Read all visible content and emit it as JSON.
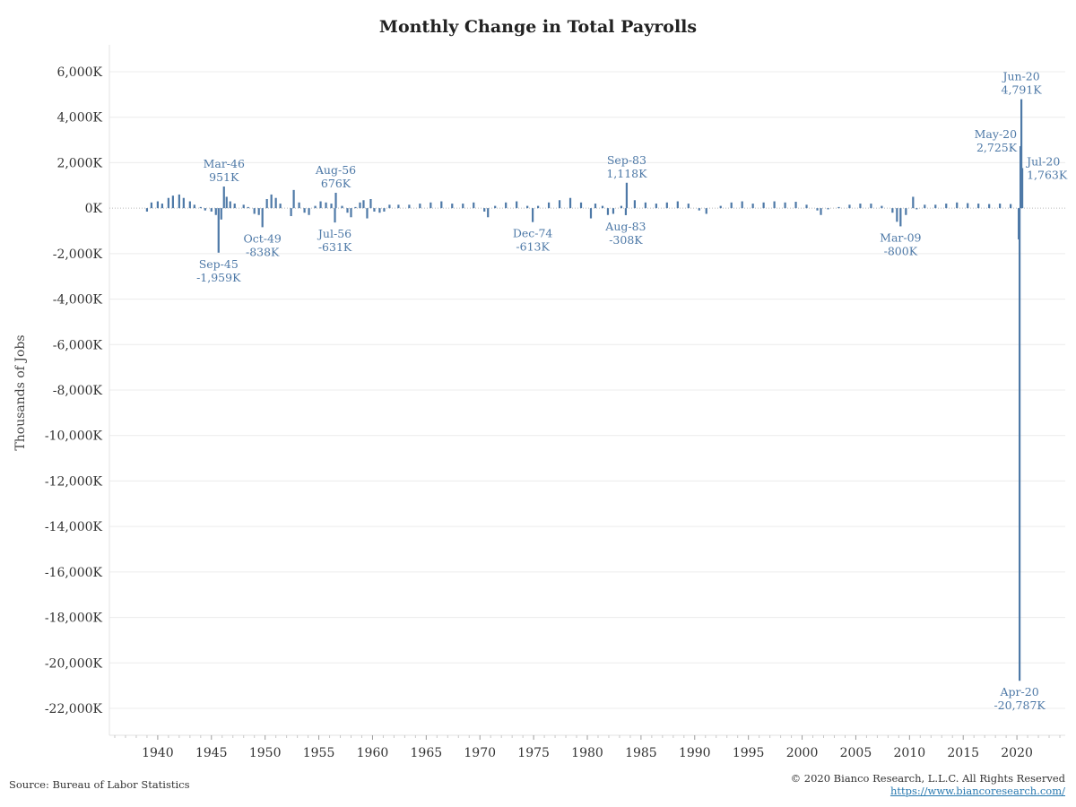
{
  "chart_data": {
    "type": "bar",
    "title": "Monthly Change in Total Payrolls",
    "ylabel": "Thousands of Jobs",
    "xlabel": "",
    "ylim": [
      -23000,
      7000
    ],
    "xlim": [
      1935.5,
      2024.5
    ],
    "y_ticks": [
      6000,
      4000,
      2000,
      0,
      -2000,
      -4000,
      -6000,
      -8000,
      -10000,
      -12000,
      -14000,
      -16000,
      -18000,
      -20000,
      -22000
    ],
    "y_tick_labels": [
      "6,000K",
      "4,000K",
      "2,000K",
      "0K",
      "-2,000K",
      "-4,000K",
      "-6,000K",
      "-8,000K",
      "-10,000K",
      "-12,000K",
      "-14,000K",
      "-16,000K",
      "-18,000K",
      "-20,000K",
      "-22,000K"
    ],
    "x_ticks": [
      1940,
      1945,
      1950,
      1955,
      1960,
      1965,
      1970,
      1975,
      1980,
      1985,
      1990,
      1995,
      2000,
      2005,
      2010,
      2015,
      2020
    ],
    "x_tick_labels": [
      "1940",
      "1945",
      "1950",
      "1955",
      "1960",
      "1965",
      "1970",
      "1975",
      "1980",
      "1985",
      "1990",
      "1995",
      "2000",
      "2005",
      "2010",
      "2015",
      "2020"
    ],
    "grid": "horizontal",
    "bar_color": "#4e79a7",
    "series": [
      {
        "values": [
          {
            "x": "1939-01",
            "y": -150
          },
          {
            "x": "1939-06",
            "y": 250
          },
          {
            "x": "1940-01",
            "y": 300
          },
          {
            "x": "1940-06",
            "y": 200
          },
          {
            "x": "1941-01",
            "y": 450
          },
          {
            "x": "1941-06",
            "y": 550
          },
          {
            "x": "1942-01",
            "y": 600
          },
          {
            "x": "1942-06",
            "y": 450
          },
          {
            "x": "1943-01",
            "y": 300
          },
          {
            "x": "1943-06",
            "y": 150
          },
          {
            "x": "1944-01",
            "y": 50
          },
          {
            "x": "1944-06",
            "y": -100
          },
          {
            "x": "1945-01",
            "y": -150
          },
          {
            "x": "1945-06",
            "y": -300
          },
          {
            "x": "1945-09",
            "y": -1959
          },
          {
            "x": "1945-12",
            "y": -500
          },
          {
            "x": "1946-03",
            "y": 951
          },
          {
            "x": "1946-06",
            "y": 500
          },
          {
            "x": "1946-10",
            "y": 300
          },
          {
            "x": "1947-03",
            "y": 200
          },
          {
            "x": "1948-01",
            "y": 150
          },
          {
            "x": "1948-06",
            "y": 50
          },
          {
            "x": "1949-01",
            "y": -250
          },
          {
            "x": "1949-06",
            "y": -300
          },
          {
            "x": "1949-10",
            "y": -838
          },
          {
            "x": "1950-03",
            "y": 400
          },
          {
            "x": "1950-08",
            "y": 600
          },
          {
            "x": "1951-01",
            "y": 450
          },
          {
            "x": "1951-06",
            "y": 200
          },
          {
            "x": "1952-06",
            "y": -350
          },
          {
            "x": "1952-09",
            "y": 800
          },
          {
            "x": "1953-03",
            "y": 250
          },
          {
            "x": "1953-09",
            "y": -200
          },
          {
            "x": "1954-02",
            "y": -300
          },
          {
            "x": "1954-09",
            "y": 100
          },
          {
            "x": "1955-03",
            "y": 300
          },
          {
            "x": "1955-09",
            "y": 250
          },
          {
            "x": "1956-03",
            "y": 200
          },
          {
            "x": "1956-07",
            "y": -631
          },
          {
            "x": "1956-08",
            "y": 676
          },
          {
            "x": "1957-03",
            "y": 100
          },
          {
            "x": "1957-09",
            "y": -200
          },
          {
            "x": "1958-01",
            "y": -400
          },
          {
            "x": "1958-06",
            "y": 50
          },
          {
            "x": "1958-11",
            "y": 250
          },
          {
            "x": "1959-03",
            "y": 350
          },
          {
            "x": "1959-07",
            "y": -450
          },
          {
            "x": "1959-11",
            "y": 400
          },
          {
            "x": "1960-03",
            "y": -150
          },
          {
            "x": "1960-09",
            "y": -200
          },
          {
            "x": "1961-02",
            "y": -150
          },
          {
            "x": "1961-08",
            "y": 150
          },
          {
            "x": "1962-06",
            "y": 150
          },
          {
            "x": "1963-06",
            "y": 150
          },
          {
            "x": "1964-06",
            "y": 200
          },
          {
            "x": "1965-06",
            "y": 250
          },
          {
            "x": "1966-06",
            "y": 300
          },
          {
            "x": "1967-06",
            "y": 200
          },
          {
            "x": "1968-06",
            "y": 200
          },
          {
            "x": "1969-06",
            "y": 250
          },
          {
            "x": "1970-06",
            "y": -150
          },
          {
            "x": "1970-10",
            "y": -400
          },
          {
            "x": "1971-06",
            "y": 100
          },
          {
            "x": "1972-06",
            "y": 250
          },
          {
            "x": "1973-06",
            "y": 300
          },
          {
            "x": "1974-06",
            "y": 100
          },
          {
            "x": "1974-12",
            "y": -613
          },
          {
            "x": "1975-06",
            "y": 100
          },
          {
            "x": "1976-06",
            "y": 250
          },
          {
            "x": "1977-06",
            "y": 350
          },
          {
            "x": "1978-06",
            "y": 450
          },
          {
            "x": "1979-06",
            "y": 250
          },
          {
            "x": "1980-05",
            "y": -450
          },
          {
            "x": "1980-10",
            "y": 200
          },
          {
            "x": "1981-06",
            "y": 100
          },
          {
            "x": "1981-12",
            "y": -300
          },
          {
            "x": "1982-06",
            "y": -250
          },
          {
            "x": "1983-03",
            "y": 100
          },
          {
            "x": "1983-08",
            "y": -308
          },
          {
            "x": "1983-09",
            "y": 1118
          },
          {
            "x": "1984-06",
            "y": 350
          },
          {
            "x": "1985-06",
            "y": 250
          },
          {
            "x": "1986-06",
            "y": 200
          },
          {
            "x": "1987-06",
            "y": 250
          },
          {
            "x": "1988-06",
            "y": 300
          },
          {
            "x": "1989-06",
            "y": 200
          },
          {
            "x": "1990-06",
            "y": -100
          },
          {
            "x": "1991-02",
            "y": -250
          },
          {
            "x": "1992-06",
            "y": 100
          },
          {
            "x": "1993-06",
            "y": 250
          },
          {
            "x": "1994-06",
            "y": 300
          },
          {
            "x": "1995-06",
            "y": 200
          },
          {
            "x": "1996-06",
            "y": 250
          },
          {
            "x": "1997-06",
            "y": 300
          },
          {
            "x": "1998-06",
            "y": 250
          },
          {
            "x": "1999-06",
            "y": 280
          },
          {
            "x": "2000-06",
            "y": 150
          },
          {
            "x": "2001-06",
            "y": -100
          },
          {
            "x": "2001-10",
            "y": -300
          },
          {
            "x": "2002-06",
            "y": -50
          },
          {
            "x": "2003-06",
            "y": 50
          },
          {
            "x": "2004-06",
            "y": 150
          },
          {
            "x": "2005-06",
            "y": 200
          },
          {
            "x": "2006-06",
            "y": 200
          },
          {
            "x": "2007-06",
            "y": 100
          },
          {
            "x": "2008-06",
            "y": -200
          },
          {
            "x": "2008-11",
            "y": -600
          },
          {
            "x": "2009-03",
            "y": -800
          },
          {
            "x": "2009-09",
            "y": -300
          },
          {
            "x": "2010-05",
            "y": 500
          },
          {
            "x": "2010-09",
            "y": -50
          },
          {
            "x": "2011-06",
            "y": 150
          },
          {
            "x": "2012-06",
            "y": 150
          },
          {
            "x": "2013-06",
            "y": 200
          },
          {
            "x": "2014-06",
            "y": 250
          },
          {
            "x": "2015-06",
            "y": 220
          },
          {
            "x": "2016-06",
            "y": 200
          },
          {
            "x": "2017-06",
            "y": 180
          },
          {
            "x": "2018-06",
            "y": 200
          },
          {
            "x": "2019-06",
            "y": 180
          },
          {
            "x": "2020-03",
            "y": -1373
          },
          {
            "x": "2020-04",
            "y": -20787
          },
          {
            "x": "2020-05",
            "y": 2725
          },
          {
            "x": "2020-06",
            "y": 4791
          },
          {
            "x": "2020-07",
            "y": 1763
          }
        ]
      }
    ],
    "annotations": [
      {
        "x": "1946-03",
        "y": 951,
        "label": "Mar-46",
        "value_label": "951K",
        "pos": "above"
      },
      {
        "x": "1945-09",
        "y": -1959,
        "label": "Sep-45",
        "value_label": "-1,959K",
        "pos": "below"
      },
      {
        "x": "1949-10",
        "y": -838,
        "label": "Oct-49",
        "value_label": "-838K",
        "pos": "below"
      },
      {
        "x": "1956-08",
        "y": 676,
        "label": "Aug-56",
        "value_label": "676K",
        "pos": "above"
      },
      {
        "x": "1956-07",
        "y": -631,
        "label": "Jul-56",
        "value_label": "-631K",
        "pos": "below"
      },
      {
        "x": "1974-12",
        "y": -613,
        "label": "Dec-74",
        "value_label": "-613K",
        "pos": "below"
      },
      {
        "x": "1983-09",
        "y": 1118,
        "label": "Sep-83",
        "value_label": "1,118K",
        "pos": "above"
      },
      {
        "x": "1983-08",
        "y": -308,
        "label": "Aug-83",
        "value_label": "-308K",
        "pos": "below"
      },
      {
        "x": "2009-03",
        "y": -800,
        "label": "Mar-09",
        "value_label": "-800K",
        "pos": "below"
      },
      {
        "x": "2020-06",
        "y": 4791,
        "label": "Jun-20",
        "value_label": "4,791K",
        "pos": "above"
      },
      {
        "x": "2020-05",
        "y": 2725,
        "label": "May-20",
        "value_label": "2,725K",
        "pos": "left"
      },
      {
        "x": "2020-07",
        "y": 1763,
        "label": "Jul-20",
        "value_label": "1,763K",
        "pos": "right"
      },
      {
        "x": "2020-04",
        "y": -20787,
        "label": "Apr-20",
        "value_label": "-20,787K",
        "pos": "below"
      }
    ]
  },
  "footer": {
    "source": "Source: Bureau of Labor Statistics",
    "copyright": "© 2020 Bianco Research, L.L.C. All Rights Reserved",
    "url": "https://www.biancoresearch.com/"
  }
}
